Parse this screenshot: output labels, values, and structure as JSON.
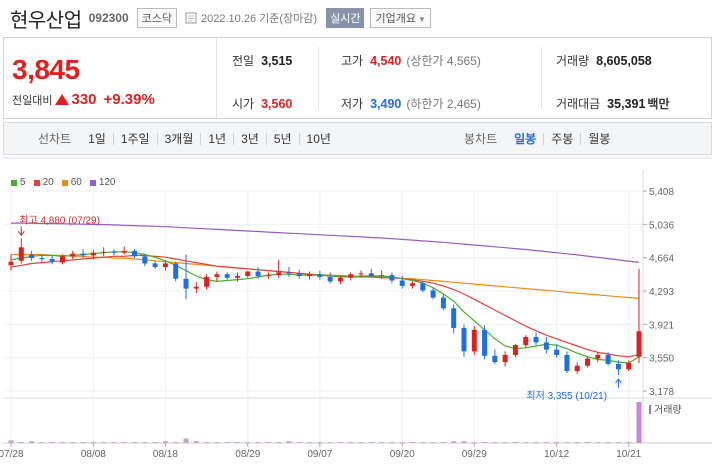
{
  "header": {
    "name": "현우산업",
    "code": "092300",
    "market": "코스닥",
    "date": "2022.10.26 기준(장마감)",
    "realtime": "실시간",
    "company_info": "기업개요"
  },
  "quote": {
    "price": "3,845",
    "change_label": "전일대비",
    "change": "330",
    "change_pct": "+9.39%",
    "prev_label": "전일",
    "prev": "3,515",
    "high_label": "고가",
    "high": "4,540",
    "upper_limit": "(상한가 4,565)",
    "volume_label": "거래량",
    "volume": "8,605,058",
    "open_label": "시가",
    "open": "3,560",
    "low_label": "저가",
    "low": "3,490",
    "lower_limit": "(하한가 2,465)",
    "amount_label": "거래대금",
    "amount": "35,391",
    "amount_unit": "백만"
  },
  "toolbar": {
    "line_title": "선차트",
    "line_options": [
      "1일",
      "1주일",
      "3개월",
      "1년",
      "3년",
      "5년",
      "10년"
    ],
    "candle_title": "봉차트",
    "candle_options": [
      "일봉",
      "주봉",
      "월봉"
    ],
    "candle_active": "일봉"
  },
  "colors": {
    "up": "#e01f1f",
    "down": "#1f6fe0",
    "ma5": "#43b02a",
    "ma20": "#e6413a",
    "ma60": "#f08a1c",
    "ma120": "#9b59c6"
  },
  "chart_data": {
    "type": "candlestick",
    "legend": [
      "5",
      "20",
      "60",
      "120"
    ],
    "y_ticks": [
      "5,408",
      "5,036",
      "4,664",
      "4,293",
      "3,921",
      "3,550",
      "3,178"
    ],
    "ylim": [
      3178,
      5408
    ],
    "x_ticks": [
      "07/28",
      "08/08",
      "08/18",
      "08/29",
      "09/07",
      "09/20",
      "09/29",
      "10/12",
      "10/21"
    ],
    "x_tick_index": [
      0,
      8,
      15,
      23,
      30,
      38,
      45,
      53,
      60
    ],
    "annotations": {
      "high": "최고 4,880 (07/29)",
      "low": "최저 3,355 (10/21)"
    },
    "volume_label": "거래량",
    "candles": [
      [
        4580,
        4700,
        4520,
        4620
      ],
      [
        4630,
        4880,
        4600,
        4780
      ],
      [
        4700,
        4740,
        4630,
        4660
      ],
      [
        4660,
        4700,
        4620,
        4650
      ],
      [
        4650,
        4690,
        4590,
        4620
      ],
      [
        4610,
        4700,
        4590,
        4680
      ],
      [
        4680,
        4740,
        4650,
        4710
      ],
      [
        4710,
        4760,
        4660,
        4690
      ],
      [
        4690,
        4750,
        4650,
        4720
      ],
      [
        4720,
        4780,
        4680,
        4730
      ],
      [
        4730,
        4760,
        4690,
        4720
      ],
      [
        4720,
        4790,
        4700,
        4740
      ],
      [
        4740,
        4760,
        4660,
        4680
      ],
      [
        4680,
        4700,
        4570,
        4600
      ],
      [
        4600,
        4630,
        4540,
        4560
      ],
      [
        4560,
        4620,
        4520,
        4600
      ],
      [
        4600,
        4620,
        4400,
        4430
      ],
      [
        4430,
        4700,
        4200,
        4320
      ],
      [
        4320,
        4390,
        4270,
        4340
      ],
      [
        4340,
        4480,
        4310,
        4450
      ],
      [
        4450,
        4510,
        4400,
        4480
      ],
      [
        4480,
        4500,
        4420,
        4440
      ],
      [
        4440,
        4500,
        4400,
        4460
      ],
      [
        4460,
        4520,
        4440,
        4510
      ],
      [
        4510,
        4560,
        4430,
        4460
      ],
      [
        4460,
        4500,
        4430,
        4470
      ],
      [
        4470,
        4640,
        4440,
        4500
      ],
      [
        4500,
        4560,
        4450,
        4490
      ],
      [
        4490,
        4530,
        4430,
        4460
      ],
      [
        4460,
        4510,
        4420,
        4480
      ],
      [
        4480,
        4520,
        4420,
        4450
      ],
      [
        4450,
        4500,
        4380,
        4400
      ],
      [
        4400,
        4460,
        4370,
        4440
      ],
      [
        4440,
        4500,
        4410,
        4480
      ],
      [
        4480,
        4520,
        4450,
        4490
      ],
      [
        4490,
        4540,
        4440,
        4460
      ],
      [
        4460,
        4520,
        4430,
        4470
      ],
      [
        4470,
        4500,
        4380,
        4410
      ],
      [
        4410,
        4460,
        4320,
        4350
      ],
      [
        4350,
        4400,
        4320,
        4380
      ],
      [
        4380,
        4400,
        4280,
        4300
      ],
      [
        4300,
        4330,
        4200,
        4220
      ],
      [
        4220,
        4250,
        4080,
        4100
      ],
      [
        4100,
        4140,
        3820,
        3880
      ],
      [
        3880,
        3920,
        3560,
        3620
      ],
      [
        3620,
        3900,
        3580,
        3860
      ],
      [
        3860,
        3910,
        3530,
        3570
      ],
      [
        3570,
        3640,
        3480,
        3500
      ],
      [
        3500,
        3620,
        3450,
        3580
      ],
      [
        3580,
        3700,
        3560,
        3690
      ],
      [
        3690,
        3800,
        3660,
        3780
      ],
      [
        3780,
        3830,
        3690,
        3720
      ],
      [
        3720,
        3780,
        3600,
        3640
      ],
      [
        3640,
        3700,
        3550,
        3580
      ],
      [
        3580,
        3620,
        3380,
        3400
      ],
      [
        3400,
        3500,
        3370,
        3460
      ],
      [
        3460,
        3560,
        3440,
        3540
      ],
      [
        3540,
        3610,
        3500,
        3580
      ],
      [
        3580,
        3610,
        3460,
        3480
      ],
      [
        3480,
        3520,
        3355,
        3420
      ],
      [
        3420,
        3520,
        3400,
        3490
      ],
      [
        3560,
        4540,
        3490,
        3845
      ]
    ],
    "ma5": [
      4640,
      4660,
      4680,
      4690,
      4690,
      4680,
      4690,
      4700,
      4710,
      4720,
      4730,
      4730,
      4720,
      4700,
      4670,
      4630,
      4580,
      4520,
      4460,
      4420,
      4400,
      4410,
      4420,
      4430,
      4450,
      4470,
      4480,
      4480,
      4470,
      4470,
      4470,
      4460,
      4450,
      4450,
      4460,
      4460,
      4460,
      4450,
      4430,
      4410,
      4380,
      4330,
      4260,
      4180,
      4060,
      3960,
      3860,
      3760,
      3680,
      3650,
      3660,
      3680,
      3700,
      3690,
      3650,
      3600,
      3560,
      3530,
      3520,
      3500,
      3490,
      3560
    ],
    "ma20": [
      4560,
      4580,
      4600,
      4610,
      4620,
      4630,
      4640,
      4650,
      4660,
      4670,
      4680,
      4680,
      4690,
      4690,
      4680,
      4670,
      4650,
      4630,
      4610,
      4590,
      4570,
      4560,
      4550,
      4540,
      4530,
      4520,
      4510,
      4500,
      4490,
      4480,
      4470,
      4460,
      4460,
      4450,
      4450,
      4450,
      4440,
      4440,
      4430,
      4420,
      4400,
      4380,
      4350,
      4310,
      4260,
      4200,
      4140,
      4080,
      4020,
      3960,
      3900,
      3850,
      3800,
      3760,
      3720,
      3680,
      3640,
      3610,
      3590,
      3570,
      3560,
      3580
    ],
    "ma60": [
      4700,
      4700,
      4700,
      4700,
      4690,
      4690,
      4680,
      4680,
      4670,
      4670,
      4660,
      4660,
      4650,
      4640,
      4630,
      4620,
      4610,
      4600,
      4590,
      4580,
      4570,
      4560,
      4550,
      4540,
      4530,
      4520,
      4510,
      4500,
      4490,
      4480,
      4475,
      4470,
      4465,
      4460,
      4455,
      4450,
      4445,
      4440,
      4435,
      4430,
      4420,
      4410,
      4400,
      4390,
      4380,
      4370,
      4360,
      4350,
      4340,
      4330,
      4320,
      4310,
      4300,
      4290,
      4280,
      4270,
      4260,
      4250,
      4240,
      4230,
      4220,
      4210
    ],
    "ma120": [
      5050,
      5050,
      5048,
      5046,
      5044,
      5042,
      5040,
      5038,
      5036,
      5033,
      5030,
      5026,
      5022,
      5018,
      5014,
      5010,
      5004,
      4998,
      4992,
      4986,
      4980,
      4974,
      4968,
      4962,
      4956,
      4950,
      4944,
      4938,
      4932,
      4926,
      4920,
      4914,
      4908,
      4902,
      4896,
      4890,
      4884,
      4876,
      4868,
      4860,
      4852,
      4844,
      4836,
      4826,
      4816,
      4806,
      4796,
      4786,
      4776,
      4766,
      4756,
      4744,
      4732,
      4720,
      4708,
      4696,
      4682,
      4668,
      4654,
      4640,
      4626,
      4612
    ],
    "volume": [
      3,
      1,
      2,
      1,
      1,
      1,
      1,
      1,
      1,
      1,
      1,
      1,
      1,
      1,
      1,
      2,
      1,
      5,
      2,
      1,
      1,
      1,
      1,
      1,
      1,
      1,
      1,
      2,
      1,
      1,
      1,
      1,
      1,
      1,
      1,
      1,
      1,
      1,
      1,
      1,
      1,
      1,
      1,
      2,
      2,
      1,
      1,
      1,
      1,
      1,
      1,
      1,
      1,
      1,
      1,
      1,
      1,
      1,
      1,
      1,
      1,
      45
    ]
  }
}
